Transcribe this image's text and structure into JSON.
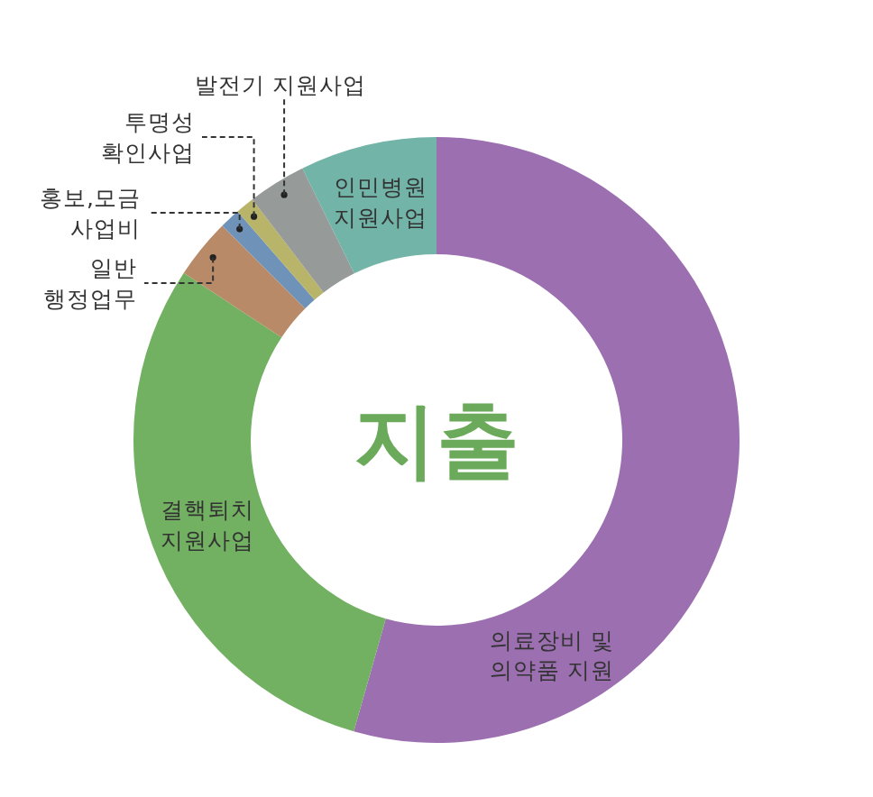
{
  "chart_data": {
    "type": "donut",
    "title": "지출",
    "legend": false,
    "categories": [
      "의료장비 및\n의약품 지원",
      "결핵퇴치\n지원사업",
      "일반\n행정업무",
      "홍보,모금\n사업비",
      "투명성\n확인사업",
      "발전기 지원사업",
      "인민병원\n지원사업"
    ],
    "values": [
      54.4,
      29.9,
      3.2,
      1.1,
      1.0,
      3.1,
      7.3
    ],
    "colors": [
      "#9b6fb0",
      "#72b062",
      "#b88a68",
      "#6f93b8",
      "#b8b46a",
      "#969a98",
      "#72b5a8"
    ]
  }
}
